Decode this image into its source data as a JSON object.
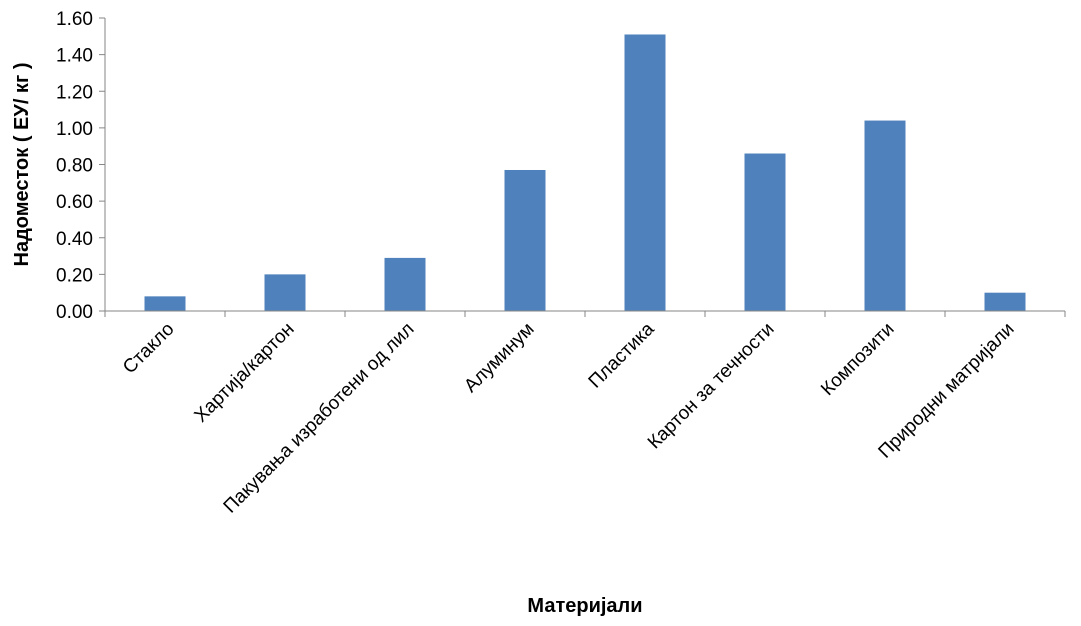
{
  "chart_data": {
    "type": "bar",
    "title": "",
    "xlabel": "Материјали",
    "ylabel": "Надоместок ( ЕУ/ кг )",
    "ylim": [
      0,
      1.6
    ],
    "yticks": [
      "0.00",
      "0.20",
      "0.40",
      "0.60",
      "0.80",
      "1.00",
      "1.20",
      "1.40",
      "1.60"
    ],
    "categories": [
      "Стакло",
      "Хартија/картон",
      "Пакувања изработени од лил",
      "Алуминум",
      "Пластика",
      "Картон за течности",
      "Композити",
      "Природни матријали"
    ],
    "values": [
      0.08,
      0.2,
      0.29,
      0.77,
      1.51,
      0.86,
      1.04,
      0.1
    ],
    "bar_color": "#4F81BD",
    "axis_color": "#868686",
    "grid": false,
    "legend": "none"
  }
}
